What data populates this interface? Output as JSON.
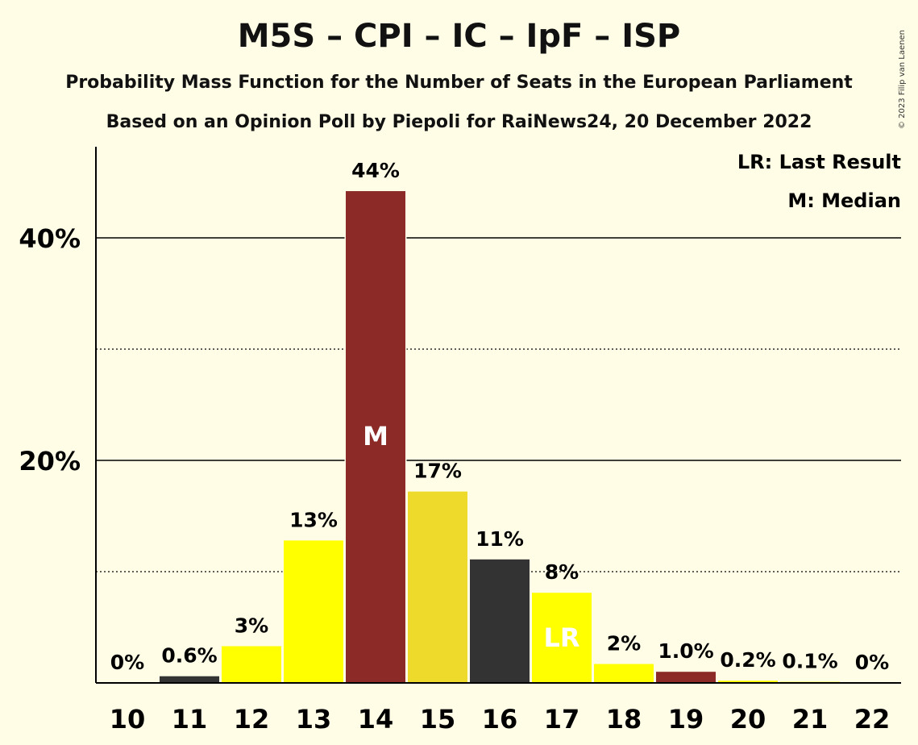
{
  "title": "M5S – CPI – IC – IpF – ISP",
  "subtitle": "Probability Mass Function for the Number of Seats in the European Parliament",
  "subtitle2": "Based on an Opinion Poll by Piepoli for RaiNews24, 20 December 2022",
  "copyright": "© 2023 Filip van Laenen",
  "legend": {
    "last_result": "LR: Last Result",
    "median": "M: Median"
  },
  "chart_data": {
    "type": "bar",
    "categories": [
      "10",
      "11",
      "12",
      "13",
      "14",
      "15",
      "16",
      "17",
      "18",
      "19",
      "20",
      "21",
      "22"
    ],
    "values": [
      0,
      0.6,
      3.3,
      12.8,
      44.2,
      17.2,
      11.1,
      8.1,
      1.7,
      1.0,
      0.2,
      0.1,
      0
    ],
    "labels": [
      "0%",
      "0.6%",
      "3%",
      "13%",
      "44%",
      "17%",
      "11%",
      "8%",
      "2%",
      "1.0%",
      "0.2%",
      "0.1%",
      "0%"
    ],
    "colors": [
      "#FFFF00",
      "#333333",
      "#FFFF00",
      "#FFFF00",
      "#8B2A26",
      "#EEDA2A",
      "#333333",
      "#FFFF00",
      "#FFFF00",
      "#8B2A26",
      "#FFFF00",
      "#FFFF00",
      "#FFFF00"
    ],
    "markers": {
      "14": "M",
      "17": "LR"
    },
    "yticks": [
      {
        "value": 20,
        "label": "20%"
      },
      {
        "value": 40,
        "label": "40%"
      }
    ],
    "minor_gridlines": [
      10,
      30
    ],
    "ylim": [
      0,
      48
    ],
    "grid": true,
    "legend_position": "top-right"
  }
}
